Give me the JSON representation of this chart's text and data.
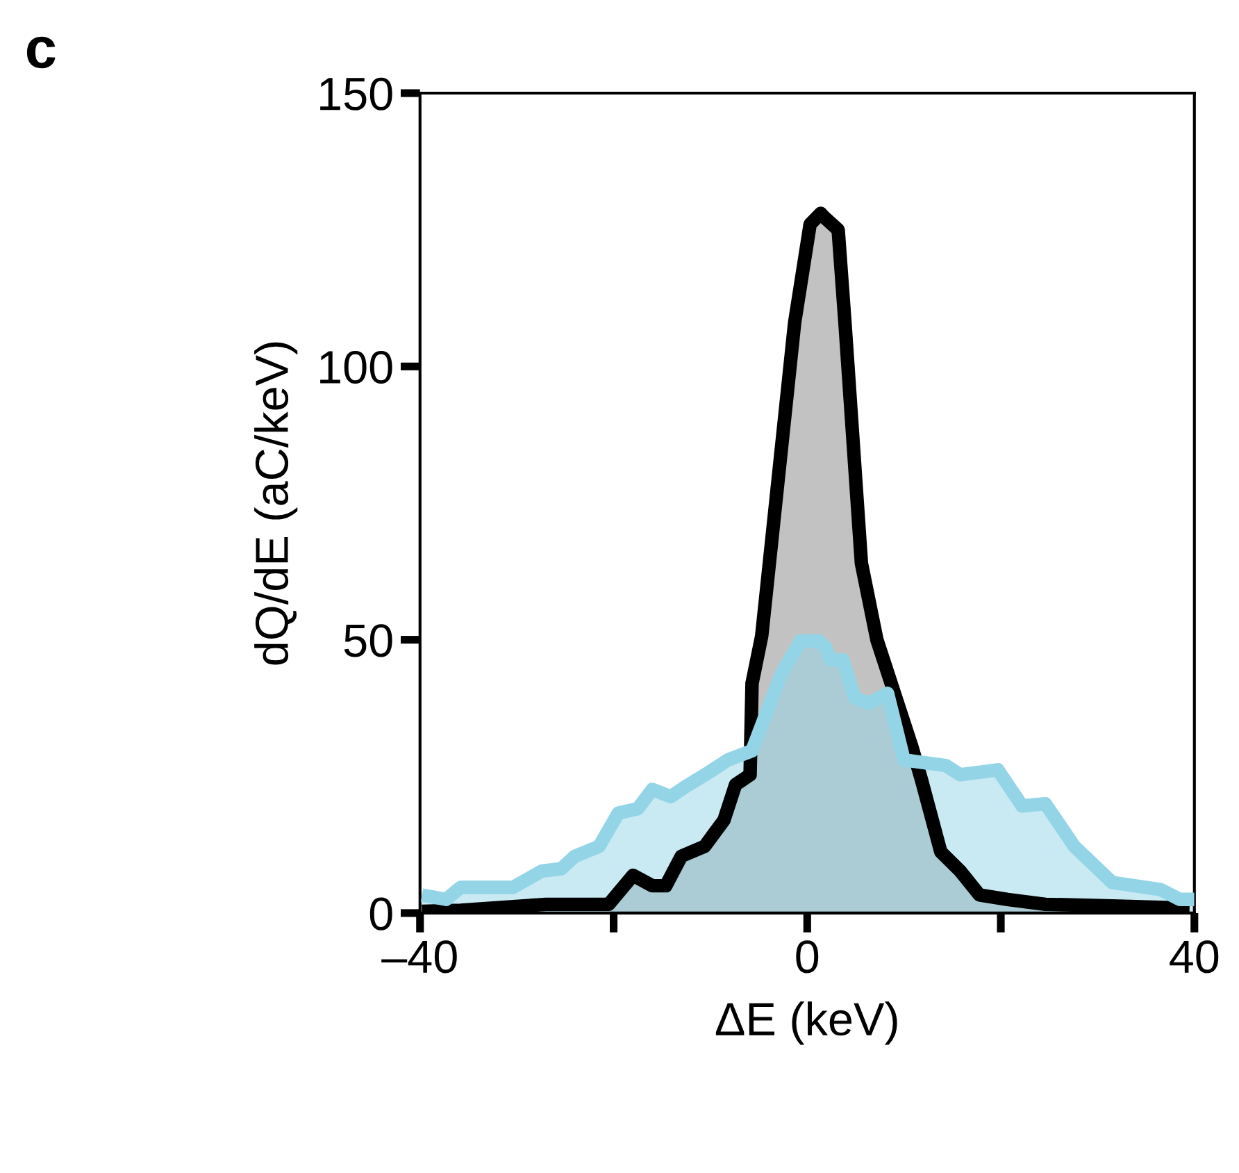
{
  "chart_data": {
    "type": "area",
    "xlabel": "ΔE (keV)",
    "ylabel": "dQ/dE (aC/keV)",
    "annotations": [
      "c"
    ],
    "xlim": [
      -40,
      40
    ],
    "ylim": [
      0,
      150
    ],
    "xticks": [
      {
        "value": -40,
        "label": "–40"
      },
      {
        "value": -20,
        "label": null
      },
      0,
      {
        "value": 20,
        "label": null
      },
      40
    ],
    "yticks": [
      0,
      50,
      100,
      150
    ],
    "grid": false,
    "legend": false,
    "series": [
      {
        "color": "#000000",
        "x": [
          -39.8,
          -35.8,
          -27,
          -20.5,
          -18,
          -16,
          -14.6,
          -13,
          -10.6,
          -8.6,
          -7.4,
          -5.9,
          -5.7,
          -4.7,
          -1.3,
          0.3,
          1.4,
          1.7,
          3.2,
          3.9,
          5.6,
          7.2,
          10.8,
          11.8,
          13.8,
          15.8,
          17.8,
          20.7,
          24.6,
          31.5,
          39.5
        ],
        "values": [
          0.3,
          0.5,
          1.6,
          1.6,
          6.9,
          5,
          5,
          10.4,
          12.2,
          17,
          23.5,
          25.3,
          42,
          50.7,
          108,
          126,
          128,
          127.4,
          125,
          108,
          64,
          50,
          30.5,
          24.4,
          11.2,
          7.7,
          3.3,
          2.5,
          1.6,
          1.3,
          0.9
        ]
      },
      {
        "color": "#93d5e6",
        "x": [
          -39.8,
          -37.3,
          -35.8,
          -30.4,
          -27.4,
          -25.4,
          -24,
          -21.5,
          -19.5,
          -17.5,
          -16,
          -14.1,
          -12.6,
          -10.2,
          -8.2,
          -5.7,
          -2.7,
          -0.7,
          1.2,
          1.9,
          2.4,
          3.7,
          4.9,
          6.4,
          8.3,
          10.0,
          14.3,
          15.8,
          19.7,
          22.2,
          24.6,
          27.6,
          31.5,
          36.5,
          38.5,
          40
        ],
        "values": [
          3.3,
          2.5,
          4.7,
          4.7,
          7.7,
          8.1,
          10.4,
          12.2,
          18.3,
          19.1,
          22.6,
          21.3,
          23.1,
          25.7,
          28,
          29.7,
          43.7,
          49.8,
          49.8,
          48.6,
          46.3,
          46.3,
          39.4,
          38.4,
          40.2,
          28,
          27,
          25.3,
          26.2,
          19.6,
          20,
          12.2,
          5.6,
          4.3,
          2.5,
          2.5
        ]
      }
    ]
  }
}
